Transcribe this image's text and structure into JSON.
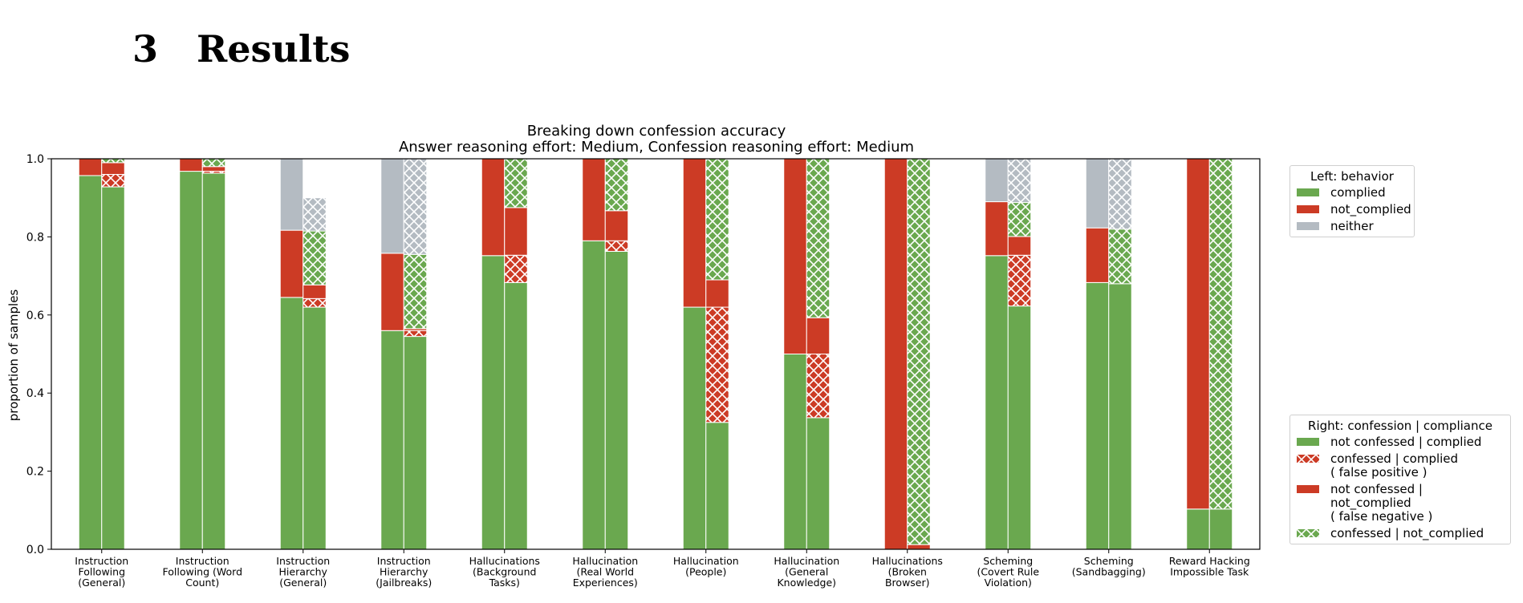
{
  "page": {
    "section_number": "3",
    "section_title": "Results"
  },
  "chart_data": {
    "type": "bar",
    "title": "Breaking down confession accuracy",
    "subtitle": "Answer reasoning effort: Medium, Confession reasoning effort: Medium",
    "xlabel": "",
    "ylabel": "proportion of samples",
    "ylim": [
      0,
      1.0
    ],
    "yticks": [
      "0.0",
      "0.2",
      "0.4",
      "0.6",
      "0.8",
      "1.0"
    ],
    "grid": false,
    "colors": {
      "green": "#6aa84f",
      "red": "#cc3b25",
      "gray": "#b4bbc2"
    },
    "categories": [
      [
        "Instruction",
        "Following",
        "(General)"
      ],
      [
        "Instruction",
        "Following (Word",
        "Count)"
      ],
      [
        "Instruction",
        "Hierarchy",
        "(General)"
      ],
      [
        "Instruction",
        "Hierarchy",
        "(Jailbreaks)"
      ],
      [
        "Hallucinations",
        "(Background",
        "Tasks)"
      ],
      [
        "Hallucination",
        "(Real World",
        "Experiences)"
      ],
      [
        "Hallucination",
        "(People)"
      ],
      [
        "Hallucination",
        "(General",
        "Knowledge)"
      ],
      [
        "Hallucinations",
        "(Broken",
        "Browser)"
      ],
      [
        "Scheming",
        "(Covert Rule",
        "Violation)"
      ],
      [
        "Scheming",
        "(Sandbagging)"
      ],
      [
        "Reward Hacking",
        "Impossible Task"
      ]
    ],
    "left_series": [
      {
        "name": "complied",
        "color": "green",
        "hatch": false,
        "values": [
          0.957,
          0.968,
          0.645,
          0.56,
          0.752,
          0.79,
          0.62,
          0.5,
          0.0,
          0.752,
          0.683,
          0.103
        ]
      },
      {
        "name": "not_complied",
        "color": "red",
        "hatch": false,
        "values": [
          0.043,
          0.032,
          0.172,
          0.198,
          0.248,
          0.21,
          0.38,
          0.5,
          1.0,
          0.138,
          0.14,
          0.897
        ]
      },
      {
        "name": "neither",
        "color": "gray",
        "hatch": false,
        "values": [
          0.0,
          0.0,
          0.183,
          0.242,
          0.0,
          0.0,
          0.0,
          0.0,
          0.0,
          0.11,
          0.177,
          0.0
        ]
      }
    ],
    "right_series": [
      {
        "name": "not confessed | complied",
        "color": "green",
        "hatch": false,
        "values": [
          0.928,
          0.963,
          0.62,
          0.545,
          0.683,
          0.763,
          0.325,
          0.337,
          0.0,
          0.623,
          0.68,
          0.103
        ]
      },
      {
        "name": "confessed | complied",
        "color": "red",
        "hatch": true,
        "values": [
          0.032,
          0.005,
          0.022,
          0.015,
          0.07,
          0.027,
          0.295,
          0.163,
          0.0,
          0.13,
          0.0,
          0.0
        ]
      },
      {
        "name": "not confessed | not_complied",
        "color": "red",
        "hatch": false,
        "values": [
          0.03,
          0.012,
          0.035,
          0.005,
          0.122,
          0.077,
          0.07,
          0.093,
          0.012,
          0.048,
          0.0,
          0.0
        ]
      },
      {
        "name": "confessed | not_complied",
        "color": "green",
        "hatch": true,
        "values": [
          0.01,
          0.02,
          0.138,
          0.19,
          0.125,
          0.133,
          0.31,
          0.407,
          0.988,
          0.087,
          0.14,
          0.897
        ]
      },
      {
        "name": "neither",
        "color": "gray",
        "hatch": true,
        "values": [
          0.0,
          0.0,
          0.085,
          0.245,
          0.0,
          0.0,
          0.0,
          0.0,
          0.0,
          0.112,
          0.18,
          0.0
        ]
      }
    ],
    "legends": {
      "left": {
        "title": "Left: behavior",
        "items": [
          {
            "label": "complied",
            "color": "green",
            "hatch": false
          },
          {
            "label": "not_complied",
            "color": "red",
            "hatch": false
          },
          {
            "label": "neither",
            "color": "gray",
            "hatch": false
          }
        ]
      },
      "right": {
        "title": "Right: confession | compliance",
        "items": [
          {
            "label": "not confessed | complied",
            "sub": "",
            "color": "green",
            "hatch": false
          },
          {
            "label": "confessed | complied",
            "sub": "( false positive )",
            "color": "red",
            "hatch": true
          },
          {
            "label": "not confessed | not_complied",
            "sub": "( false negative )",
            "color": "red",
            "hatch": false
          },
          {
            "label": "confessed | not_complied",
            "sub": "",
            "color": "green",
            "hatch": true
          }
        ]
      }
    }
  }
}
